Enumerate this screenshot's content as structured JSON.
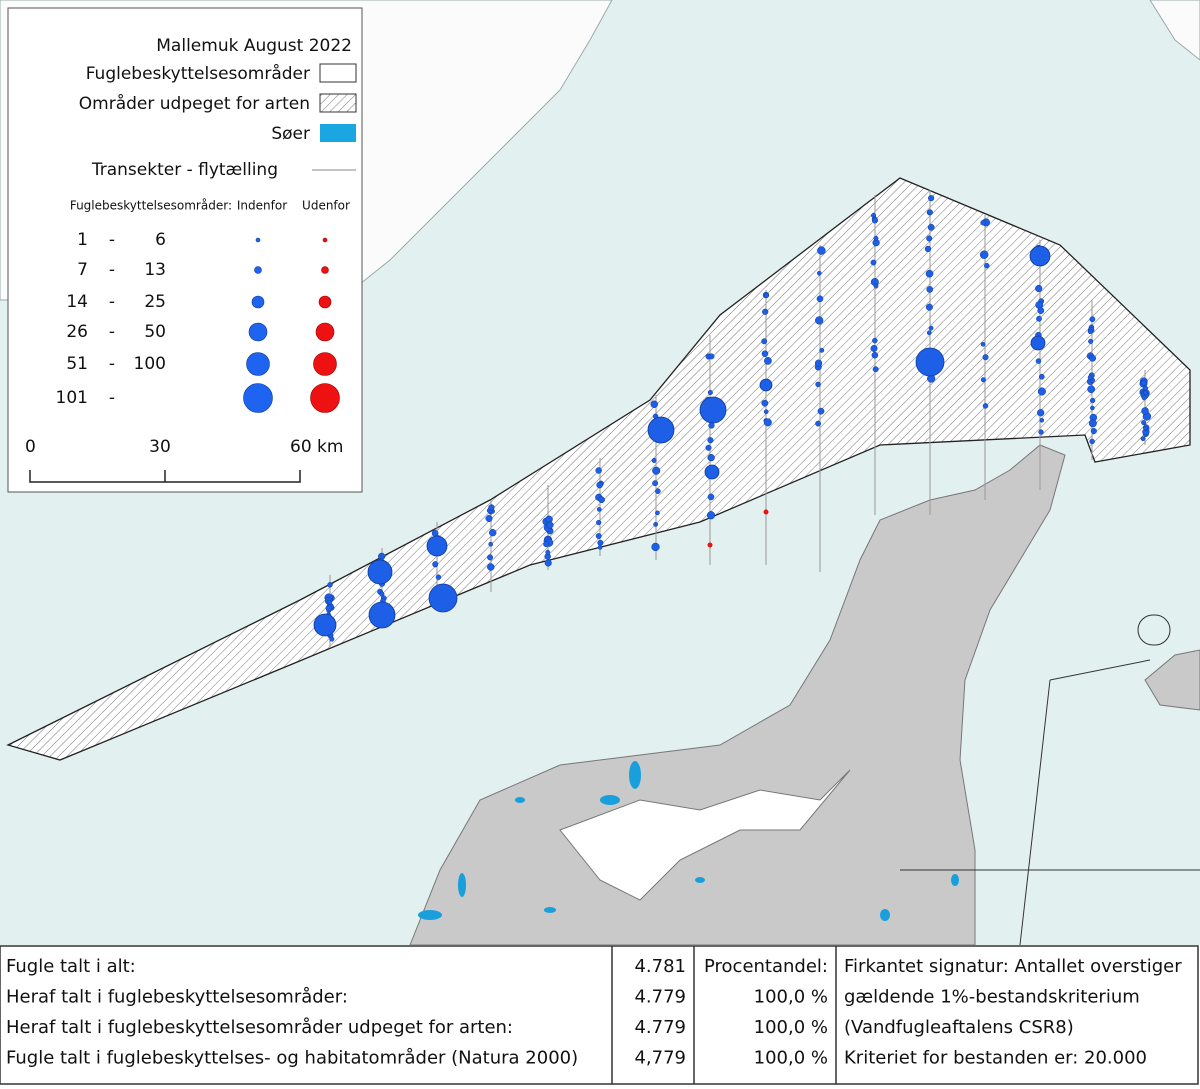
{
  "legend": {
    "title": "Mallemuk August 2022",
    "items": [
      {
        "label": "Fuglebeskyttelsesområder"
      },
      {
        "label": "Områder udpeget for arten"
      },
      {
        "label": "Søer"
      },
      {
        "label": "Transekter - flytælling"
      }
    ],
    "size_header": "Fuglebeskyttelsesområder:",
    "col_inside": "Indenfor",
    "col_outside": "Udenfor",
    "classes": [
      {
        "from": "1",
        "sep": "-",
        "to": "6"
      },
      {
        "from": "7",
        "sep": "-",
        "to": "13"
      },
      {
        "from": "14",
        "sep": "-",
        "to": "25"
      },
      {
        "from": "26",
        "sep": "-",
        "to": "50"
      },
      {
        "from": "51",
        "sep": "-",
        "to": "100"
      },
      {
        "from": "101",
        "sep": "-"
      }
    ],
    "scale": [
      "0",
      "30",
      "60 km"
    ]
  },
  "table": {
    "rows": [
      [
        "Fugle talt i alt:",
        "4.781",
        "Procentandel:",
        "Firkantet signatur: Antallet overstiger"
      ],
      [
        "Heraf talt i fuglebeskyttelsesområder:",
        "4.779",
        "100,0 %",
        "gældende 1%-bestandskriterium"
      ],
      [
        "Heraf talt i fuglebeskyttelsesområder udpeget for arten:",
        "4.779",
        "100,0 %",
        "(Vandfugleaftalens CSR8)"
      ],
      [
        "Fugle talt i fuglebeskyttelses- og habitatområder (Natura 2000)",
        "4,779",
        "100,0 %",
        "Kriteriet for bestanden er: 20.000"
      ]
    ]
  }
}
